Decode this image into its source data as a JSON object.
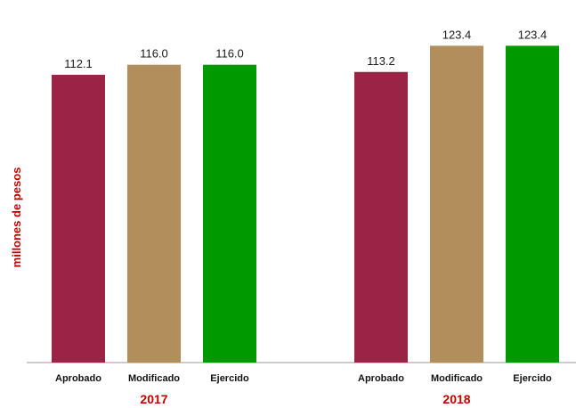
{
  "chart_data": {
    "type": "bar",
    "ylabel": "millones de pesos",
    "ylim": [
      0,
      130
    ],
    "grid": false,
    "legend": "none",
    "series_labels": [
      "Aprobado",
      "Modificado",
      "Ejercido"
    ],
    "groups": [
      {
        "name": "2017",
        "categories": [
          "Aprobado",
          "Modificado",
          "Ejercido"
        ],
        "values": [
          112.1,
          116.0,
          116.0
        ],
        "value_labels": [
          "112.1",
          "116.0",
          "116.0"
        ]
      },
      {
        "name": "2018",
        "categories": [
          "Aprobado",
          "Modificado",
          "Ejercido"
        ],
        "values": [
          113.2,
          123.4,
          123.4
        ],
        "value_labels": [
          "113.2",
          "123.4",
          "123.4"
        ]
      }
    ],
    "colors": {
      "Aprobado": "#9b2346",
      "Modificado": "#b38e5d",
      "Ejercido": "#009900",
      "axis_label": "#c00000",
      "group_label": "#c00000"
    }
  }
}
